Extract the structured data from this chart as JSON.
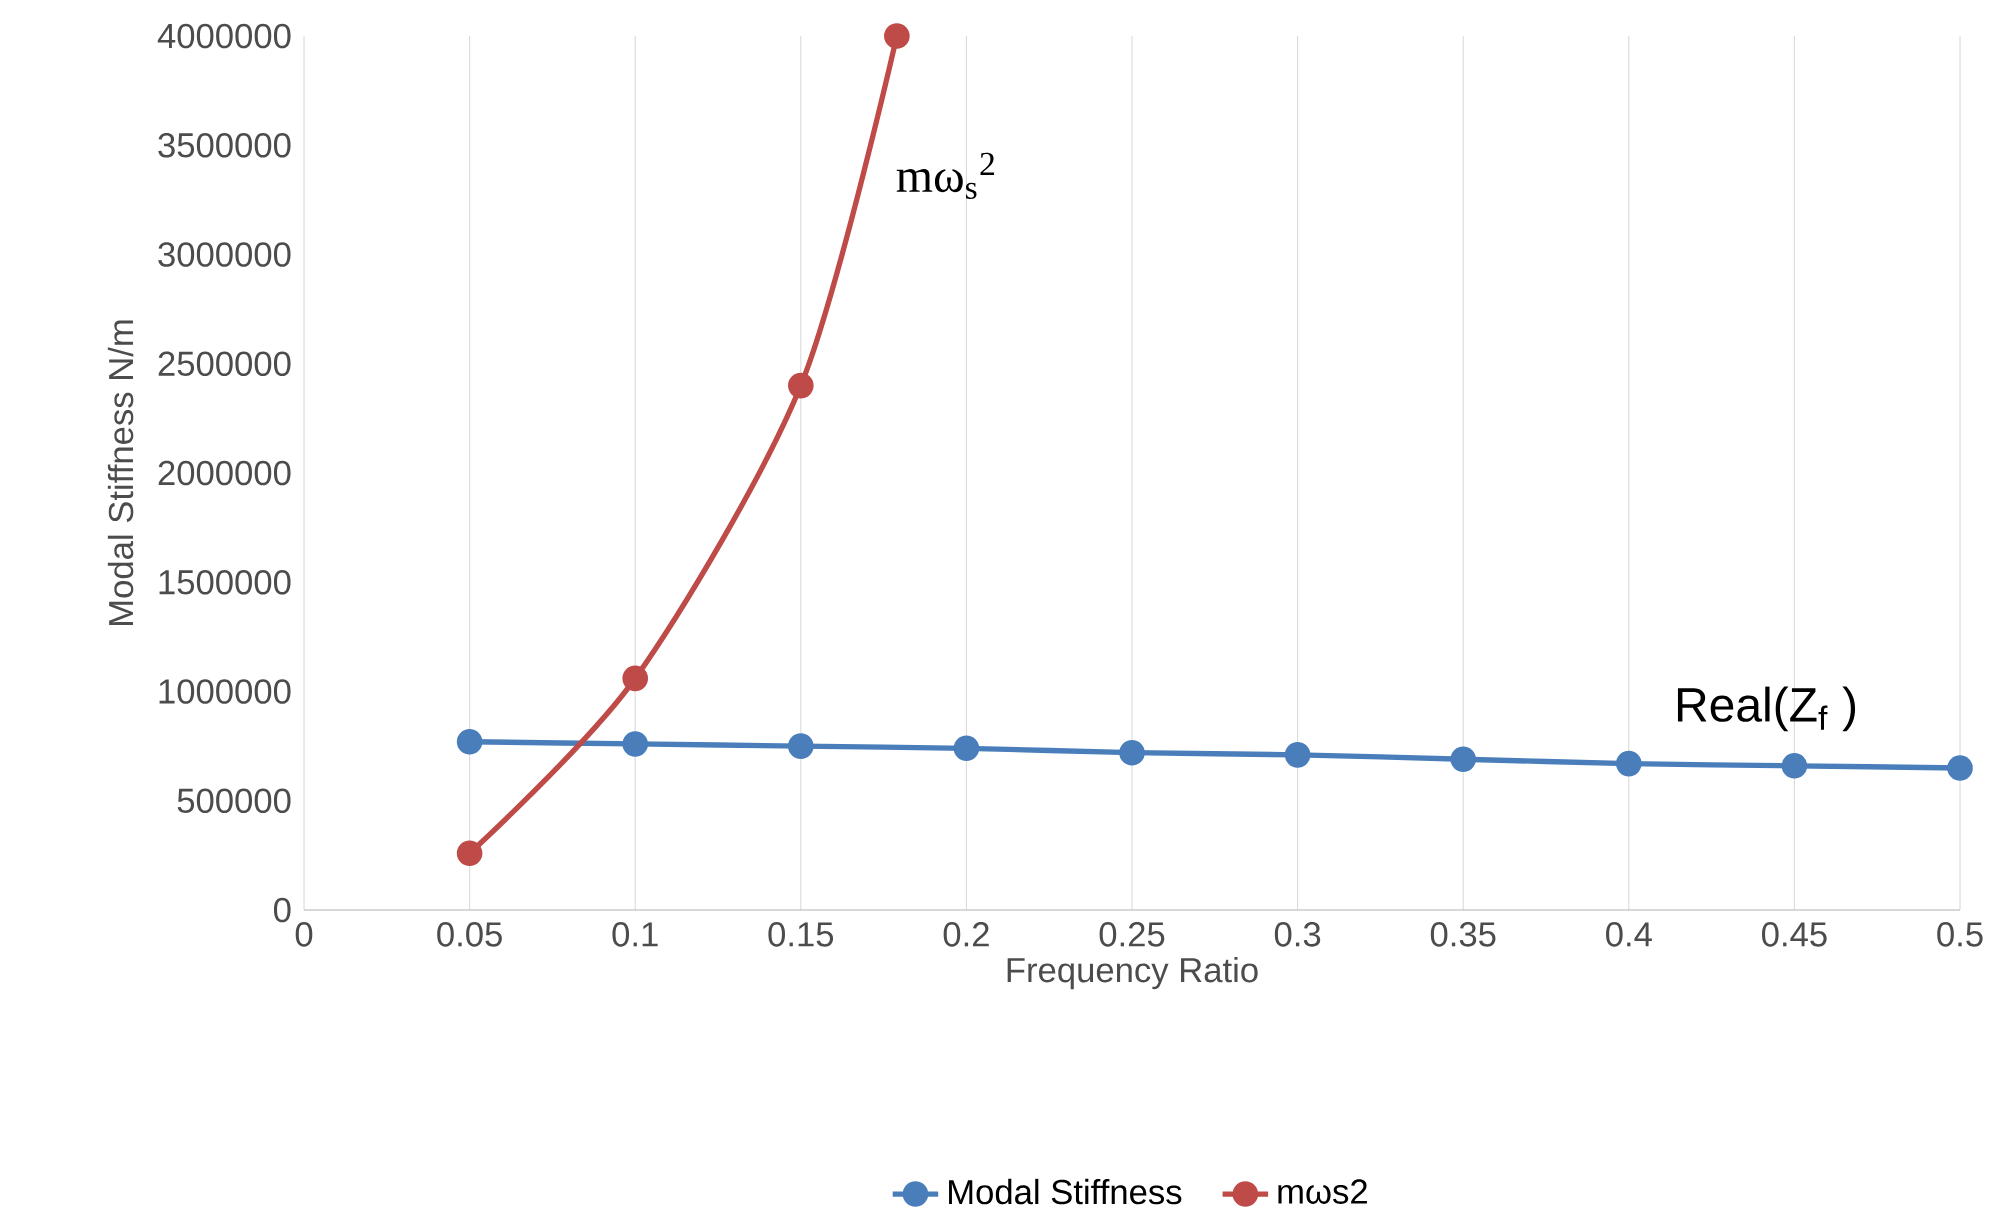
{
  "chart_data": {
    "type": "line",
    "xlabel": "Frequency Ratio",
    "ylabel": "Modal Stiffness N/m",
    "x": [
      0.05,
      0.1,
      0.15,
      0.2,
      0.25,
      0.3,
      0.35,
      0.4,
      0.45,
      0.5
    ],
    "series": [
      {
        "name": "Modal Stiffness",
        "color": "#4a7ebb",
        "values": [
          770000,
          760000,
          750000,
          740000,
          720000,
          710000,
          690000,
          670000,
          660000,
          650000
        ]
      },
      {
        "name": "mωs2",
        "color": "#be4b48",
        "x": [
          0.05,
          0.1,
          0.15,
          0.179
        ],
        "values": [
          260000,
          1060000,
          2400000,
          4000000
        ]
      }
    ],
    "xlim": [
      0,
      0.5
    ],
    "ylim": [
      0,
      4000000
    ],
    "xticks": [
      0,
      0.05,
      0.1,
      0.15,
      0.2,
      0.25,
      0.3,
      0.35,
      0.4,
      0.45,
      0.5
    ],
    "yticks": [
      0,
      500000,
      1000000,
      1500000,
      2000000,
      2500000,
      3000000,
      3500000,
      4000000
    ],
    "annotations": [
      "mω$_{s}$$^{2}$",
      "Real(Z$_{f}$ )"
    ],
    "grid": "x",
    "legend": "bottom",
    "marker": "circle",
    "line_style": "solid"
  }
}
